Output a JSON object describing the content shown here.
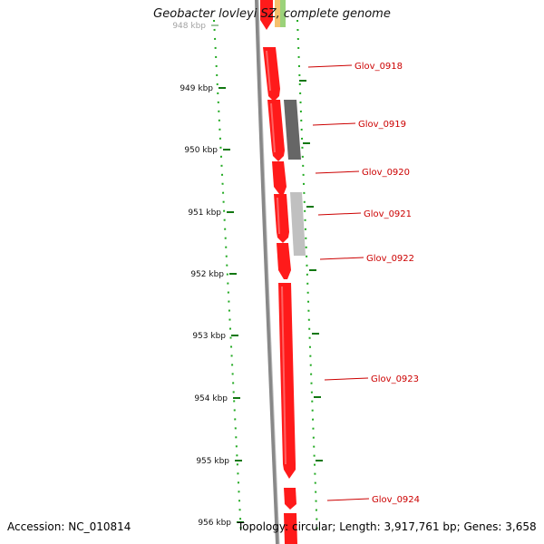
{
  "title": "Geobacter lovleyi SZ, complete genome",
  "footer": {
    "accession": "Accession: NC_010814",
    "stats": "Topology: circular; Length: 3,917,761 bp; Genes: 3,658"
  },
  "ruler": {
    "unit": "kbp",
    "ticks": [
      "948 kbp",
      "949 kbp",
      "950 kbp",
      "951 kbp",
      "952 kbp",
      "953 kbp",
      "954 kbp",
      "955 kbp",
      "956 kbp"
    ]
  },
  "genes": [
    {
      "label": "Glov_0918",
      "color": "#ff1a1a"
    },
    {
      "label": "Glov_0919",
      "color": "#666666"
    },
    {
      "label": "Glov_0920",
      "color": "#ff1a1a"
    },
    {
      "label": "Glov_0921",
      "color": "#c0c0c0"
    },
    {
      "label": "Glov_0922",
      "color": "#ff1a1a"
    },
    {
      "label": "Glov_0923",
      "color": "#ff1a1a"
    },
    {
      "label": "Glov_0924",
      "color": "#ff1a1a"
    }
  ],
  "colors": {
    "label": "#cc0000",
    "tick": "#117711",
    "dots": "#22aa22",
    "backbone": "#888888"
  }
}
